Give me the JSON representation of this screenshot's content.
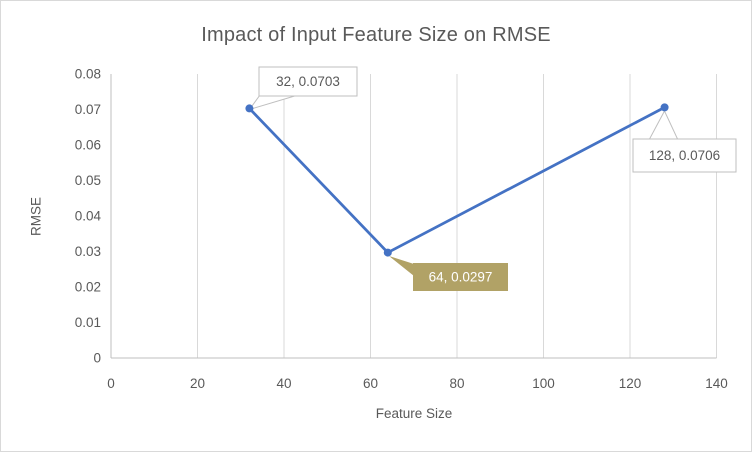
{
  "window": {
    "background": "#ffffff",
    "border_color": "#d9d9d9"
  },
  "chart_data": {
    "type": "line",
    "title": "Impact of Input Feature Size on RMSE",
    "xlabel": "Feature Size",
    "ylabel": "RMSE",
    "x": [
      32,
      64,
      128
    ],
    "y": [
      0.0703,
      0.0297,
      0.0706
    ],
    "xlim": [
      0,
      140
    ],
    "ylim": [
      0,
      0.08
    ],
    "xticks": [
      0,
      20,
      40,
      60,
      80,
      100,
      120,
      140
    ],
    "xtick_labels": [
      "0",
      "20",
      "40",
      "60",
      "80",
      "100",
      "120",
      "140"
    ],
    "yticks": [
      0,
      0.01,
      0.02,
      0.03,
      0.04,
      0.05,
      0.06,
      0.07,
      0.08
    ],
    "ytick_labels": [
      "0",
      "0.01",
      "0.02",
      "0.03",
      "0.04",
      "0.05",
      "0.06",
      "0.07",
      "0.08"
    ],
    "grid": "vertical-only",
    "legend": "none",
    "series_color": "#4472c4",
    "marker": "circle",
    "data_labels": [
      {
        "text": "32, 0.0703",
        "variant": "white-callout"
      },
      {
        "text": "64, 0.0297",
        "variant": "gold-callout"
      },
      {
        "text": "128, 0.0706",
        "variant": "white-callout"
      }
    ],
    "colors": {
      "title_text": "#595959",
      "axis_text": "#595959",
      "gridline": "#d9d9d9",
      "axis_line": "#bfbfbf",
      "callout_border": "#bfbfbf",
      "callout_white_fill": "#ffffff",
      "callout_white_text": "#595959",
      "callout_gold_fill": "#b1a266",
      "callout_gold_text": "#ffffff"
    }
  }
}
